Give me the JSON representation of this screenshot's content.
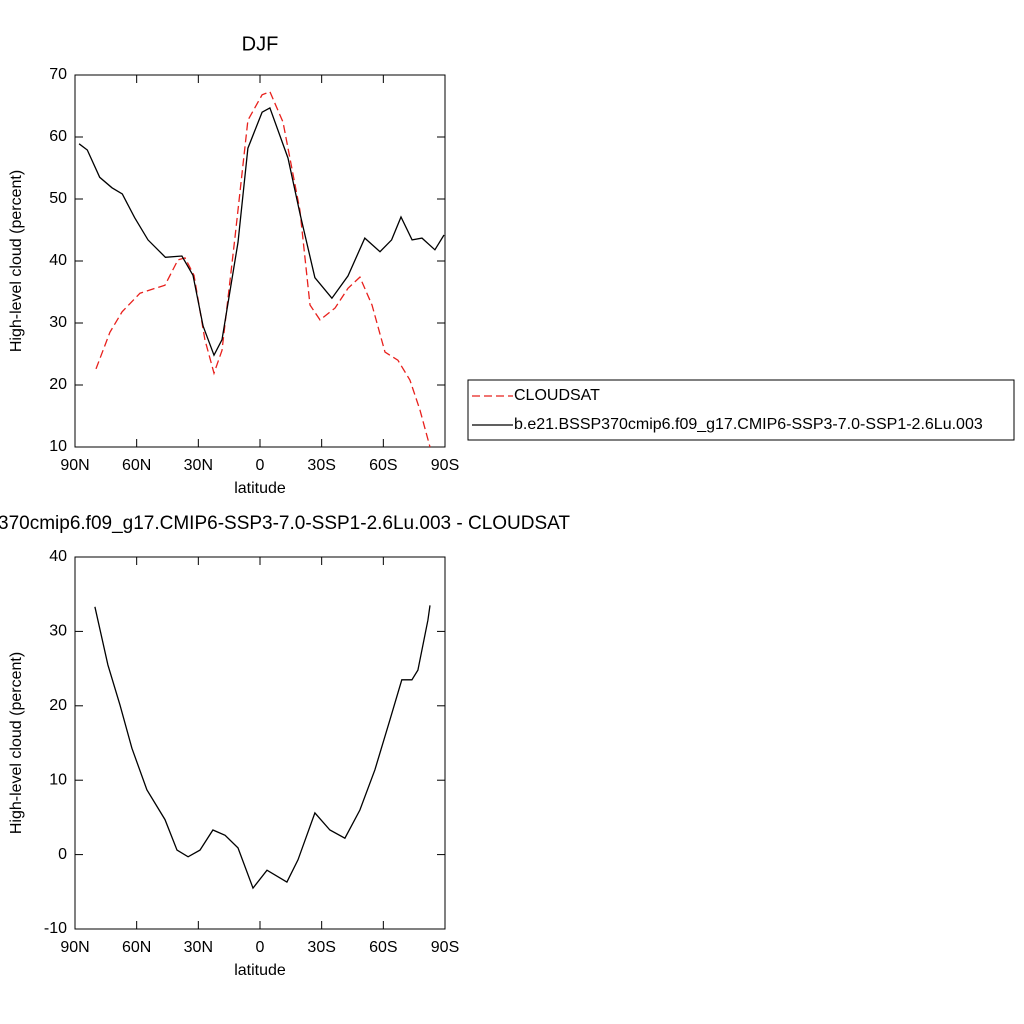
{
  "chart_data": [
    {
      "type": "line",
      "title": "DJF",
      "xlabel": "latitude",
      "ylabel": "High-level cloud (percent)",
      "xlim": [
        90,
        -90
      ],
      "xticks": [
        {
          "value": 90,
          "label": "90N"
        },
        {
          "value": 60,
          "label": "60N"
        },
        {
          "value": 30,
          "label": "30N"
        },
        0,
        {
          "value": -30,
          "label": "30S"
        },
        {
          "value": -60,
          "label": "60S"
        },
        {
          "value": -90,
          "label": "90S"
        }
      ],
      "ylim": [
        10,
        70
      ],
      "yticks": [
        10,
        20,
        30,
        40,
        50,
        60,
        70
      ],
      "series": [
        {
          "name": "CLOUDSAT",
          "color": "#e8201c",
          "line_style": "dashed",
          "x": [
            79.8,
            73,
            67.1,
            58.4,
            51,
            46.2,
            39.9,
            36.5,
            32.1,
            26.8,
            22.4,
            18.5,
            12.2,
            5.9,
            -1,
            -4.8,
            -11.2,
            -19.4,
            -24.3,
            -29.2,
            -36.5,
            -42.8,
            -48.6,
            -54.5,
            -60.8,
            -67.1,
            -72.9,
            -77.8,
            -82.7
          ],
          "values": [
            22.6,
            28.5,
            31.8,
            34.8,
            35.6,
            36.1,
            40.2,
            40.5,
            37.7,
            27.3,
            21.9,
            25.6,
            43.7,
            62.7,
            66.8,
            67.3,
            62.4,
            48.2,
            32.9,
            30.5,
            32.4,
            35.6,
            37.4,
            32.9,
            25.3,
            24,
            20.8,
            16,
            10
          ]
        },
        {
          "name": "b.e21.BSSP370cmip6.f09_g17.CMIP6-SSP3-7.0-SSP1-2.6Lu.003",
          "color": "#000000",
          "line_style": "solid",
          "x": [
            88,
            84,
            78,
            72,
            67,
            61,
            54.5,
            46,
            38,
            32.6,
            27.7,
            22.4,
            18.5,
            10.7,
            5.9,
            -1,
            -4.8,
            -13.6,
            -19.4,
            -26.7,
            -35,
            -42.8,
            -51,
            -58.4,
            -64,
            -68.6,
            -74,
            -78.8,
            -85.1,
            -89.5
          ],
          "values": [
            58.9,
            57.9,
            53.5,
            51.8,
            50.8,
            47,
            43.4,
            40.6,
            40.8,
            37.7,
            29.5,
            24.8,
            27.3,
            43,
            58.2,
            64,
            64.7,
            56.6,
            47.7,
            37.3,
            34,
            37.6,
            43.7,
            41.5,
            43.4,
            47.1,
            43.4,
            43.7,
            41.8,
            44.2
          ]
        }
      ]
    },
    {
      "type": "line",
      "title": "370cmip6.f09_g17.CMIP6-SSP3-7.0-SSP1-2.6Lu.003 - CLOUDSAT",
      "xlabel": "latitude",
      "ylabel": "High-level cloud (percent)",
      "xlim": [
        90,
        -90
      ],
      "xticks": [
        {
          "value": 90,
          "label": "90N"
        },
        {
          "value": 60,
          "label": "60N"
        },
        {
          "value": 30,
          "label": "30N"
        },
        0,
        {
          "value": -30,
          "label": "30S"
        },
        {
          "value": -60,
          "label": "60S"
        },
        {
          "value": -90,
          "label": "90S"
        }
      ],
      "ylim": [
        -10,
        40
      ],
      "yticks": [
        -10,
        0,
        10,
        20,
        30,
        40
      ],
      "series": [
        {
          "color": "#000000",
          "line_style": "solid",
          "x": [
            80.3,
            74,
            68.1,
            62.3,
            55,
            46.2,
            40.4,
            35,
            29.2,
            22.9,
            17,
            10.7,
            3.4,
            -3.4,
            -13.1,
            -18.5,
            -26.7,
            -34,
            -41.3,
            -48.6,
            -55.9,
            -63.2,
            -69,
            -73.9,
            -76.8,
            -81.7,
            -82.7
          ],
          "values": [
            33.3,
            25.5,
            20.1,
            14.3,
            8.7,
            4.7,
            0.6,
            -0.3,
            0.6,
            3.3,
            2.6,
            0.9,
            -4.5,
            -2.1,
            -3.7,
            -0.7,
            5.6,
            3.3,
            2.2,
            6,
            11.4,
            18.1,
            23.5,
            23.5,
            24.8,
            31.5,
            33.5
          ]
        }
      ]
    }
  ]
}
